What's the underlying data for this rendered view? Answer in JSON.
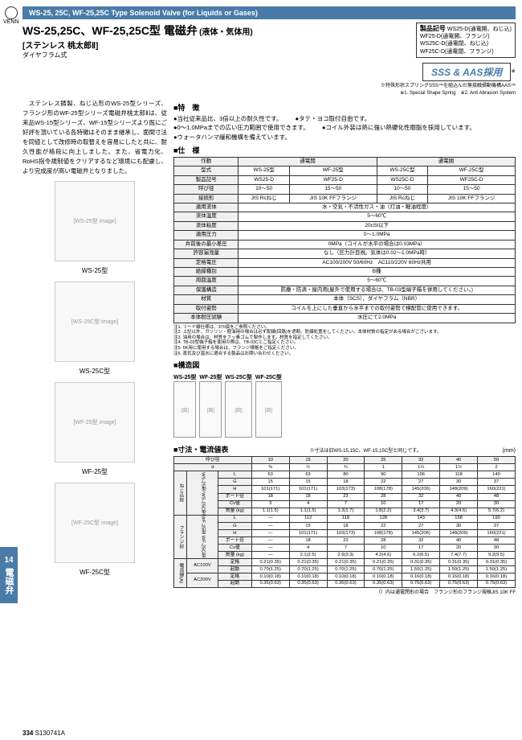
{
  "logo": {
    "brand": "VENN"
  },
  "header": {
    "bar": "WS-25, 25C, WF-25,25C Type Solenoid Valve (for Liquids or Gases)"
  },
  "title": {
    "main": "WS-25,25C、WF-25,25C型 電磁弁",
    "suffix": "(液体・気体用)",
    "sub": "[ステンレス 桃太郎Ⅱ]",
    "note": "ダイヤフラム式"
  },
  "product_codes": {
    "label": "製品記号",
    "items": [
      "WS25-D(通電開、ねじ込)",
      "WF25-D(通電開、フランジ)",
      "WS25C-D(通電閉、ねじ込)",
      "WF25C-D(通電閉、フランジ)"
    ]
  },
  "sss": {
    "banner": "SSS & AAS採用",
    "note1": "※特殊形状スプリングSSS™を組込んだ無接触摺動機構AAS™",
    "note2": "※1. Special Shape Spring　※2. Anti Abrasion System"
  },
  "intro": "　ステンレス鋳製、ねじ込形のWS-25型シリーズ、フランジ形のWF-25型シリーズ電磁弁桃太郎Ⅱは、従来品WS-15型シリーズ、WF-15型シリーズより既にご好評を頂いている各特徴はそのまま継承し、面間寸法を同値として改修時の取替えを容易にしたと共に、耐久性能が格段に向上しました。また、省電力化、RoHS指令規制値をクリアするなど環境にも配慮し、より完成度が高い電磁弁となりました。",
  "features_title": "■特　徴",
  "features": [
    "●当社従来品比、3倍以上の耐久性です。",
    "●タテ・ヨコ取付自由です。",
    "●0～1.0MPaまでの広い圧力範囲で使用できます。",
    "●コイル外装は熱に強い熱硬化性樹脂を採用しています。",
    "●ウォータハンマ緩和機構を備えています。"
  ],
  "spec_title": "■仕　様",
  "spec": {
    "headers": [
      "作動",
      "通電開",
      "通電閉"
    ],
    "model_row": [
      "型式",
      "WS-25型",
      "WF-25型",
      "WS-25C型",
      "WF-25C型"
    ],
    "code_row": [
      "製品記号",
      "WS25-D",
      "WF25-D",
      "WS25C-D",
      "WF25C-D"
    ],
    "rows": [
      [
        "呼び径",
        "10～50",
        "15～50",
        "10～50",
        "15～50"
      ],
      [
        "接続形",
        "JIS Rcねじ",
        "JIS 10K FFフランジ",
        "JIS Rcねじ",
        "JIS 10K FFフランジ"
      ],
      [
        "適用流体",
        "水・空気・不活性ガス・油（灯油・軽油程度）"
      ],
      [
        "流体温度",
        "5～60℃"
      ],
      [
        "流体粘度",
        "20cSt以下"
      ],
      [
        "適用圧力",
        "0～1.0MPa"
      ],
      [
        "弁前後の最小差圧",
        "0MPa（コイルが水平の場合は0.03MPa）"
      ],
      [
        "許容漏洩量",
        "なし（圧力計目視。気体は0.02～1.0MPa時）"
      ],
      [
        "定格電圧",
        "AC100/200V 50/60Hz　AC110/220V 60Hz共用"
      ],
      [
        "絶縁種別",
        "B種"
      ],
      [
        "周囲温度",
        "5～60℃"
      ],
      [
        "保護構造",
        "防塵・防滴・屋内用(屋外で使用する場合は、TB-03型端子箱を併用してください。)"
      ],
      [
        "材質",
        "本体（SCS）、ダイヤフラム（NBR）"
      ],
      [
        "取付姿勢",
        "コイルを上にした垂直から水平までの取付姿勢で横配管に使用できます。"
      ],
      [
        "本体耐圧試験",
        "水圧にて2.0MPa"
      ]
    ]
  },
  "notes": [
    "注1. リード線仕様は、370頁をご参照ください。",
    "注2. 上記以外、ガソリン・軽油用の場合は必ず配線(回路)を遮断、防爆処置をしてください。本体材質の指定がある場合がございます。",
    "注3. 油用の場合は、材質をフッ素ゴムで製作します。材質を指定してください。",
    "注4. TB-03型端子箱を使用の際は、TB-03Cとご指定ください。",
    "注5. 5K用に使用する場合は、フランジ規格をご指定ください。",
    "注6. 蒸気及び温水に適合する製品はお問い合わせください。"
  ],
  "images": [
    {
      "label": "WS-25型"
    },
    {
      "label": "WS-25C型"
    },
    {
      "label": "WF-25型"
    },
    {
      "label": "WF-25C型"
    }
  ],
  "struct_title": "■構造図",
  "struct_labels": [
    "WS-25型",
    "WF-25型",
    "WS-25C型",
    "WF-25C型"
  ],
  "dim_title": "■寸法・電流値表",
  "dim_note": "※寸法は旧WS-15,15C、WF-15,15C型と同じです。",
  "dim_unit": "(mm)",
  "dim": {
    "sizes": [
      "呼び径",
      "10",
      "15",
      "20",
      "25",
      "32",
      "40",
      "50"
    ],
    "d": [
      "d",
      "⅜",
      "½",
      "¾",
      "1",
      "1¼",
      "1½",
      "2"
    ],
    "thread": {
      "label": "ねじ込形",
      "models": "WS-25型 WS-25C型",
      "rows": [
        [
          "L",
          "63",
          "63",
          "80",
          "90",
          "106",
          "118",
          "140"
        ],
        [
          "G",
          "15",
          "15",
          "18",
          "22",
          "27",
          "30",
          "37"
        ],
        [
          "H",
          "101(171)",
          "101(171)",
          "103(173)",
          "108(178)",
          "145(206)",
          "148(209)",
          "160(221)"
        ],
        [
          "ポート径",
          "18",
          "18",
          "23",
          "28",
          "32",
          "40",
          "48"
        ],
        [
          "Cv値",
          "3",
          "4",
          "7",
          "10",
          "17",
          "20",
          "30"
        ],
        [
          "質量 (kg)",
          "1.1(1.5)",
          "1.1(1.5)",
          "1.3(1.7)",
          "1.8(2.2)",
          "3.4(3.7)",
          "4.3(4.6)",
          "5.7(6.2)"
        ]
      ]
    },
    "flange": {
      "label": "フランジ形",
      "models": "WF-25型 WF-25C型",
      "rows": [
        [
          "L",
          "—",
          "112",
          "118",
          "128",
          "143",
          "158",
          "190"
        ],
        [
          "G",
          "—",
          "15",
          "18",
          "22",
          "27",
          "30",
          "37"
        ],
        [
          "H",
          "—",
          "101(171)",
          "103(173)",
          "108(178)",
          "145(206)",
          "148(209)",
          "160(221)"
        ],
        [
          "ポート径",
          "—",
          "18",
          "23",
          "28",
          "32",
          "40",
          "48"
        ],
        [
          "Cv値",
          "—",
          "4",
          "7",
          "10",
          "17",
          "20",
          "30"
        ],
        [
          "質量 (kg)",
          "—",
          "2.1(2.5)",
          "2.9(3.3)",
          "4.2(4.6)",
          "6.2(6.5)",
          "7.4(7.7)",
          "9.2(9.5)"
        ]
      ]
    },
    "current": {
      "label": "電流値(A)",
      "v1": "AC100V",
      "v1rows": [
        [
          "定格",
          "0.21(0.35)",
          "0.21(0.35)",
          "0.21(0.35)",
          "0.21(0.35)",
          "0.31(0.35)",
          "0.31(0.35)",
          "0.31(0.35)"
        ],
        [
          "起動",
          "0.70(1.25)",
          "0.70(1.25)",
          "0.70(1.25)",
          "0.70(1.25)",
          "1.50(1.25)",
          "1.50(1.25)",
          "1.50(1.25)"
        ]
      ],
      "v2": "AC200V",
      "v2rows": [
        [
          "定格",
          "0.10(0.18)",
          "0.10(0.18)",
          "0.10(0.18)",
          "0.10(0.18)",
          "0.16(0.18)",
          "0.16(0.18)",
          "0.16(0.18)"
        ],
        [
          "起動",
          "0.35(0.63)",
          "0.35(0.63)",
          "0.35(0.63)",
          "0.35(0.63)",
          "0.75(0.63)",
          "0.75(0.63)",
          "0.75(0.63)"
        ]
      ]
    },
    "footnote": "（）内は通電閉形の場合　フランジ形のフランジ規格JIS 10K FF"
  },
  "sidebar": {
    "num": "14",
    "text": "電磁弁"
  },
  "footer": {
    "page": "334",
    "doc": "S130741A"
  }
}
